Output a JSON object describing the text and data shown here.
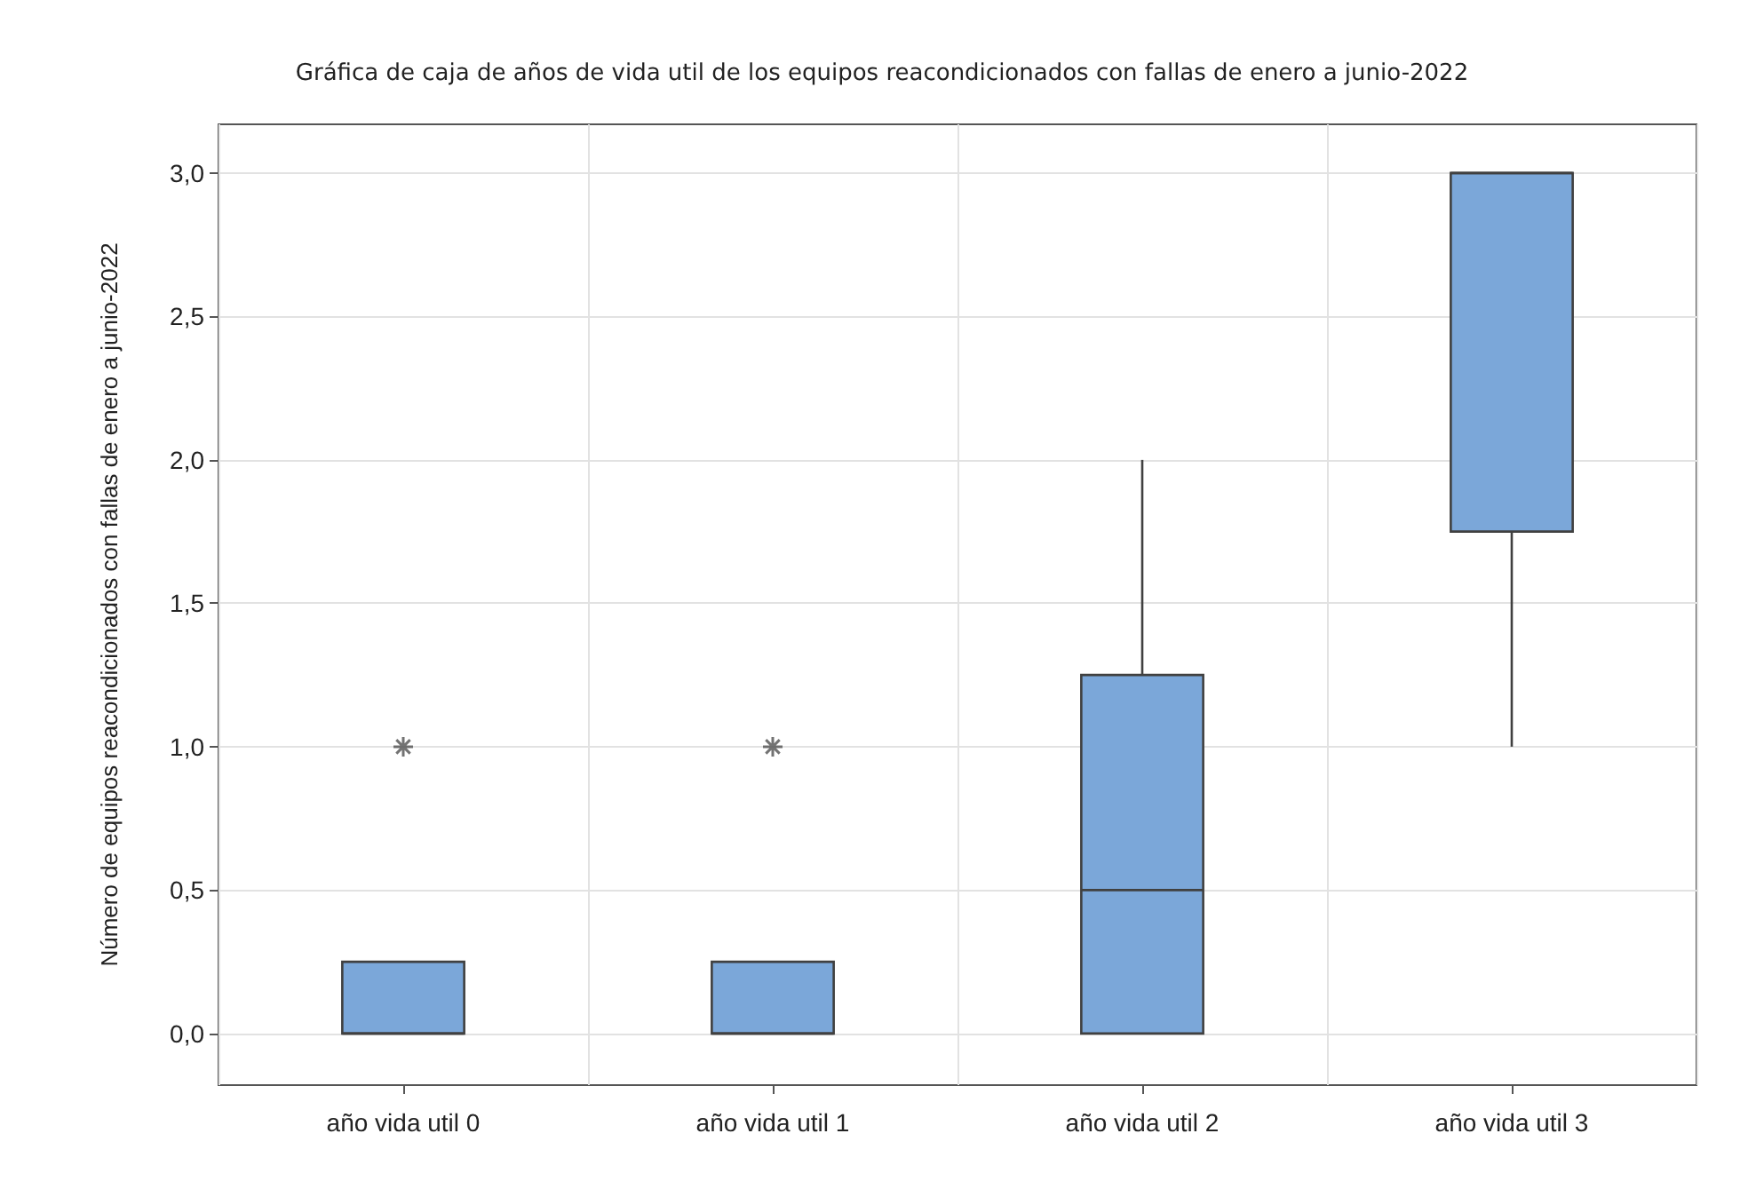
{
  "chart_data": {
    "type": "box",
    "title": "Gráfica de caja de años de vida util de los equipos reacondicionados con fallas de enero a junio-2022",
    "ylabel": "Número de equipos reacondicionados con fallas de enero a junio-2022",
    "categories": [
      "año vida util 0",
      "año vida util 1",
      "año vida util 2",
      "año vida util 3"
    ],
    "boxes": [
      {
        "low": 0,
        "q1": 0,
        "median": 0,
        "q3": 0.25,
        "high": 0,
        "outliers": [
          1
        ]
      },
      {
        "low": 0,
        "q1": 0,
        "median": 0,
        "q3": 0.25,
        "high": 0,
        "outliers": [
          1
        ]
      },
      {
        "low": 0,
        "q1": 0,
        "median": 0.5,
        "q3": 1.25,
        "high": 2
      },
      {
        "low": 1,
        "q1": 1.75,
        "median": 3,
        "q3": 3,
        "high": 3
      }
    ],
    "color": "#7ba7d9",
    "ylim": [
      -0.18,
      3.17
    ],
    "yticks": [
      {
        "value": 0,
        "label": "0,0"
      },
      {
        "value": 0.5,
        "label": "0,5"
      },
      {
        "value": 1,
        "label": "1,0"
      },
      {
        "value": 1.5,
        "label": "1,5"
      },
      {
        "value": 2,
        "label": "2,0"
      },
      {
        "value": 2.5,
        "label": "2,5"
      },
      {
        "value": 3,
        "label": "3,0"
      }
    ],
    "grid": true,
    "marker": "cross"
  }
}
